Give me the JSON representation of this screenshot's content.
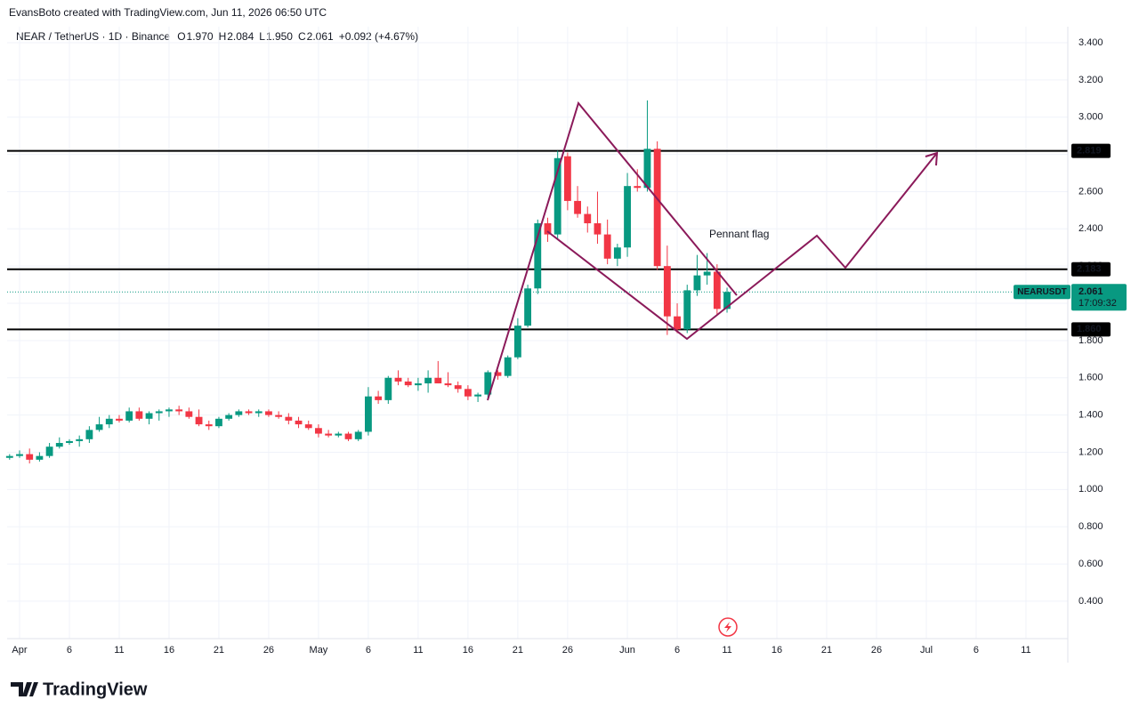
{
  "header": {
    "credit": "EvansBoto created with TradingView.com, Jun 11, 2026 06:50 UTC",
    "symbol": "NEAR / TetherUS · 1D · Binance",
    "ohlc": [
      {
        "key": "O",
        "value": "1.970"
      },
      {
        "key": "H",
        "value": "2.084"
      },
      {
        "key": "L",
        "value": "1.950"
      },
      {
        "key": "C",
        "value": "2.061"
      }
    ],
    "change": "+0.092 (+4.67%)"
  },
  "footer": {
    "brand": "TradingView"
  },
  "chart_data": {
    "type": "candlestick",
    "up_color": "#089981",
    "down_color": "#f23645",
    "xlim": [
      -1.25,
      105.2
    ],
    "ylim": [
      0.199,
      3.486
    ],
    "yticks": [
      {
        "value": 0.4,
        "label": "0.400"
      },
      {
        "value": 0.6,
        "label": "0.600"
      },
      {
        "value": 0.8,
        "label": "0.800"
      },
      {
        "value": 1.0,
        "label": "1.000"
      },
      {
        "value": 1.2,
        "label": "1.200"
      },
      {
        "value": 1.4,
        "label": "1.400"
      },
      {
        "value": 1.6,
        "label": "1.600"
      },
      {
        "value": 1.8,
        "label": "1.800"
      },
      {
        "value": 2.0,
        "label": "2.000"
      },
      {
        "value": 2.2,
        "label": "2.200"
      },
      {
        "value": 2.4,
        "label": "2.400"
      },
      {
        "value": 2.6,
        "label": "2.600"
      },
      {
        "value": 2.8,
        "label": "2.800"
      },
      {
        "value": 3.0,
        "label": "3.000"
      },
      {
        "value": 3.2,
        "label": "3.200"
      },
      {
        "value": 3.4,
        "label": "3.400"
      }
    ],
    "xticks": [
      {
        "value": 0,
        "label": "Apr"
      },
      {
        "value": 5,
        "label": "6"
      },
      {
        "value": 10,
        "label": "11"
      },
      {
        "value": 15,
        "label": "16"
      },
      {
        "value": 20,
        "label": "21"
      },
      {
        "value": 25,
        "label": "26"
      },
      {
        "value": 30,
        "label": "May"
      },
      {
        "value": 35,
        "label": "6"
      },
      {
        "value": 40,
        "label": "11"
      },
      {
        "value": 45,
        "label": "16"
      },
      {
        "value": 50,
        "label": "21"
      },
      {
        "value": 55,
        "label": "26"
      },
      {
        "value": 61,
        "label": "Jun"
      },
      {
        "value": 66,
        "label": "6"
      },
      {
        "value": 71,
        "label": "11"
      },
      {
        "value": 76,
        "label": "16"
      },
      {
        "value": 81,
        "label": "21"
      },
      {
        "value": 86,
        "label": "26"
      },
      {
        "value": 91,
        "label": "Jul"
      },
      {
        "value": 96,
        "label": "6"
      },
      {
        "value": 101,
        "label": "11"
      }
    ],
    "grid": true,
    "levels": [
      {
        "value": 2.819,
        "label": "2.819"
      },
      {
        "value": 2.183,
        "label": "2.183"
      },
      {
        "value": 1.86,
        "label": "1.860"
      }
    ],
    "last_price": {
      "value": 2.061,
      "symbol": "NEARUSDT",
      "countdown": "17:09:32"
    },
    "annotation": "Pennant flag",
    "candles": [
      {
        "x": -1,
        "open": 1.17,
        "high": 1.19,
        "low": 1.16,
        "close": 1.18
      },
      {
        "x": 0,
        "open": 1.18,
        "high": 1.21,
        "low": 1.17,
        "close": 1.19
      },
      {
        "x": 1,
        "open": 1.19,
        "high": 1.22,
        "low": 1.14,
        "close": 1.16
      },
      {
        "x": 2,
        "open": 1.16,
        "high": 1.2,
        "low": 1.15,
        "close": 1.18
      },
      {
        "x": 3,
        "open": 1.18,
        "high": 1.25,
        "low": 1.17,
        "close": 1.23
      },
      {
        "x": 4,
        "open": 1.23,
        "high": 1.28,
        "low": 1.22,
        "close": 1.25
      },
      {
        "x": 5,
        "open": 1.25,
        "high": 1.27,
        "low": 1.24,
        "close": 1.26
      },
      {
        "x": 6,
        "open": 1.26,
        "high": 1.29,
        "low": 1.23,
        "close": 1.27
      },
      {
        "x": 7,
        "open": 1.27,
        "high": 1.34,
        "low": 1.25,
        "close": 1.32
      },
      {
        "x": 8,
        "open": 1.32,
        "high": 1.39,
        "low": 1.31,
        "close": 1.35
      },
      {
        "x": 9,
        "open": 1.35,
        "high": 1.4,
        "low": 1.33,
        "close": 1.38
      },
      {
        "x": 10,
        "open": 1.38,
        "high": 1.4,
        "low": 1.36,
        "close": 1.37
      },
      {
        "x": 11,
        "open": 1.37,
        "high": 1.44,
        "low": 1.36,
        "close": 1.42
      },
      {
        "x": 12,
        "open": 1.42,
        "high": 1.44,
        "low": 1.37,
        "close": 1.38
      },
      {
        "x": 13,
        "open": 1.38,
        "high": 1.42,
        "low": 1.35,
        "close": 1.41
      },
      {
        "x": 14,
        "open": 1.41,
        "high": 1.43,
        "low": 1.37,
        "close": 1.42
      },
      {
        "x": 15,
        "open": 1.42,
        "high": 1.44,
        "low": 1.39,
        "close": 1.43
      },
      {
        "x": 16,
        "open": 1.43,
        "high": 1.45,
        "low": 1.4,
        "close": 1.42
      },
      {
        "x": 17,
        "open": 1.42,
        "high": 1.44,
        "low": 1.38,
        "close": 1.39
      },
      {
        "x": 18,
        "open": 1.39,
        "high": 1.43,
        "low": 1.34,
        "close": 1.35
      },
      {
        "x": 19,
        "open": 1.35,
        "high": 1.37,
        "low": 1.32,
        "close": 1.34
      },
      {
        "x": 20,
        "open": 1.34,
        "high": 1.39,
        "low": 1.33,
        "close": 1.38
      },
      {
        "x": 21,
        "open": 1.38,
        "high": 1.41,
        "low": 1.37,
        "close": 1.4
      },
      {
        "x": 22,
        "open": 1.4,
        "high": 1.43,
        "low": 1.39,
        "close": 1.42
      },
      {
        "x": 23,
        "open": 1.42,
        "high": 1.43,
        "low": 1.4,
        "close": 1.41
      },
      {
        "x": 24,
        "open": 1.41,
        "high": 1.43,
        "low": 1.39,
        "close": 1.42
      },
      {
        "x": 25,
        "open": 1.42,
        "high": 1.43,
        "low": 1.39,
        "close": 1.4
      },
      {
        "x": 26,
        "open": 1.4,
        "high": 1.42,
        "low": 1.38,
        "close": 1.39
      },
      {
        "x": 27,
        "open": 1.39,
        "high": 1.41,
        "low": 1.35,
        "close": 1.37
      },
      {
        "x": 28,
        "open": 1.37,
        "high": 1.39,
        "low": 1.33,
        "close": 1.35
      },
      {
        "x": 29,
        "open": 1.35,
        "high": 1.37,
        "low": 1.32,
        "close": 1.33
      },
      {
        "x": 30,
        "open": 1.33,
        "high": 1.35,
        "low": 1.28,
        "close": 1.3
      },
      {
        "x": 31,
        "open": 1.3,
        "high": 1.32,
        "low": 1.28,
        "close": 1.29
      },
      {
        "x": 32,
        "open": 1.29,
        "high": 1.31,
        "low": 1.28,
        "close": 1.3
      },
      {
        "x": 33,
        "open": 1.3,
        "high": 1.31,
        "low": 1.26,
        "close": 1.27
      },
      {
        "x": 34,
        "open": 1.27,
        "high": 1.32,
        "low": 1.26,
        "close": 1.31
      },
      {
        "x": 35,
        "open": 1.31,
        "high": 1.55,
        "low": 1.29,
        "close": 1.5
      },
      {
        "x": 36,
        "open": 1.5,
        "high": 1.53,
        "low": 1.46,
        "close": 1.48
      },
      {
        "x": 37,
        "open": 1.48,
        "high": 1.61,
        "low": 1.46,
        "close": 1.6
      },
      {
        "x": 38,
        "open": 1.6,
        "high": 1.64,
        "low": 1.56,
        "close": 1.58
      },
      {
        "x": 39,
        "open": 1.58,
        "high": 1.6,
        "low": 1.55,
        "close": 1.56
      },
      {
        "x": 40,
        "open": 1.56,
        "high": 1.6,
        "low": 1.53,
        "close": 1.57
      },
      {
        "x": 41,
        "open": 1.57,
        "high": 1.64,
        "low": 1.52,
        "close": 1.6
      },
      {
        "x": 42,
        "open": 1.6,
        "high": 1.69,
        "low": 1.57,
        "close": 1.57
      },
      {
        "x": 43,
        "open": 1.57,
        "high": 1.63,
        "low": 1.55,
        "close": 1.56
      },
      {
        "x": 44,
        "open": 1.56,
        "high": 1.58,
        "low": 1.52,
        "close": 1.54
      },
      {
        "x": 45,
        "open": 1.54,
        "high": 1.56,
        "low": 1.48,
        "close": 1.5
      },
      {
        "x": 46,
        "open": 1.5,
        "high": 1.52,
        "low": 1.47,
        "close": 1.51
      },
      {
        "x": 47,
        "open": 1.51,
        "high": 1.64,
        "low": 1.49,
        "close": 1.63
      },
      {
        "x": 48,
        "open": 1.63,
        "high": 1.64,
        "low": 1.59,
        "close": 1.61
      },
      {
        "x": 49,
        "open": 1.61,
        "high": 1.72,
        "low": 1.6,
        "close": 1.71
      },
      {
        "x": 50,
        "open": 1.71,
        "high": 1.92,
        "low": 1.7,
        "close": 1.88
      },
      {
        "x": 51,
        "open": 1.88,
        "high": 2.1,
        "low": 1.87,
        "close": 2.08
      },
      {
        "x": 52,
        "open": 2.08,
        "high": 2.45,
        "low": 2.05,
        "close": 2.43
      },
      {
        "x": 53,
        "open": 2.43,
        "high": 2.46,
        "low": 2.33,
        "close": 2.37
      },
      {
        "x": 54,
        "open": 2.37,
        "high": 2.82,
        "low": 2.34,
        "close": 2.78
      },
      {
        "x": 55,
        "open": 2.79,
        "high": 2.81,
        "low": 2.5,
        "close": 2.55
      },
      {
        "x": 56,
        "open": 2.55,
        "high": 2.63,
        "low": 2.46,
        "close": 2.48
      },
      {
        "x": 57,
        "open": 2.48,
        "high": 2.52,
        "low": 2.38,
        "close": 2.43
      },
      {
        "x": 58,
        "open": 2.43,
        "high": 2.6,
        "low": 2.32,
        "close": 2.37
      },
      {
        "x": 59,
        "open": 2.37,
        "high": 2.45,
        "low": 2.21,
        "close": 2.24
      },
      {
        "x": 60,
        "open": 2.24,
        "high": 2.32,
        "low": 2.2,
        "close": 2.3
      },
      {
        "x": 61,
        "open": 2.3,
        "high": 2.7,
        "low": 2.25,
        "close": 2.63
      },
      {
        "x": 62,
        "open": 2.63,
        "high": 2.72,
        "low": 2.6,
        "close": 2.62
      },
      {
        "x": 63,
        "open": 2.62,
        "high": 3.09,
        "low": 2.6,
        "close": 2.83
      },
      {
        "x": 64,
        "open": 2.83,
        "high": 2.87,
        "low": 2.18,
        "close": 2.2
      },
      {
        "x": 65,
        "open": 2.2,
        "high": 2.31,
        "low": 1.83,
        "close": 1.93
      },
      {
        "x": 66,
        "open": 1.93,
        "high": 2.0,
        "low": 1.84,
        "close": 1.86
      },
      {
        "x": 67,
        "open": 1.86,
        "high": 2.1,
        "low": 1.84,
        "close": 2.07
      },
      {
        "x": 68,
        "open": 2.07,
        "high": 2.26,
        "low": 2.04,
        "close": 2.15
      },
      {
        "x": 69,
        "open": 2.15,
        "high": 2.27,
        "low": 2.1,
        "close": 2.17
      },
      {
        "x": 70,
        "open": 2.17,
        "high": 2.21,
        "low": 1.94,
        "close": 1.97
      },
      {
        "x": 71,
        "open": 1.97,
        "high": 2.084,
        "low": 1.95,
        "close": 2.061
      }
    ]
  }
}
